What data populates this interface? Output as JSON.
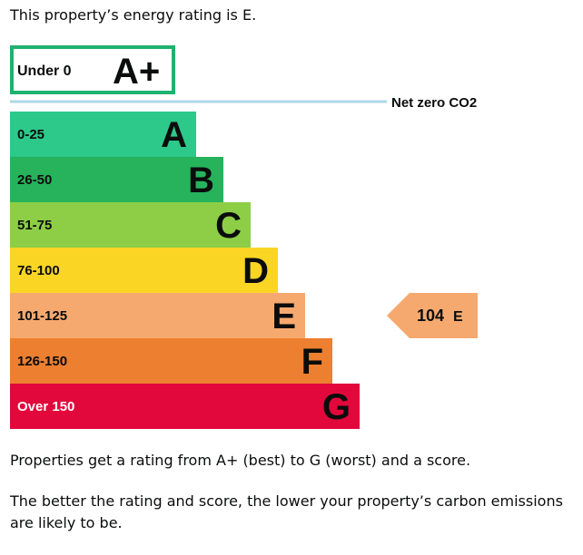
{
  "intro_text": "This property’s energy rating is E.",
  "chart_data": {
    "type": "bar",
    "title": "",
    "xlabel": "",
    "ylabel": "",
    "top_band": {
      "range": "Under 0",
      "letter": "A+",
      "color": "#1fb26f"
    },
    "net_zero": {
      "label": "Net zero CO2",
      "line_color": "#add8e6"
    },
    "bands": [
      {
        "range": "0-25",
        "letter": "A",
        "color": "#2cc98a"
      },
      {
        "range": "26-50",
        "letter": "B",
        "color": "#26b35c"
      },
      {
        "range": "51-75",
        "letter": "C",
        "color": "#8dce46"
      },
      {
        "range": "76-100",
        "letter": "D",
        "color": "#fad524"
      },
      {
        "range": "101-125",
        "letter": "E",
        "color": "#f6a96f"
      },
      {
        "range": "126-150",
        "letter": "F",
        "color": "#ec7f30"
      },
      {
        "range": "Over 150",
        "letter": "G",
        "color": "#e2083c"
      }
    ],
    "current": {
      "score": "104",
      "letter": "E",
      "band_index": 4,
      "color": "#f6a96f"
    }
  },
  "para1": "Properties get a rating from A+ (best) to G (worst) and a score.",
  "para2": "The better the rating and score, the lower your property’s carbon emissions are likely to be."
}
